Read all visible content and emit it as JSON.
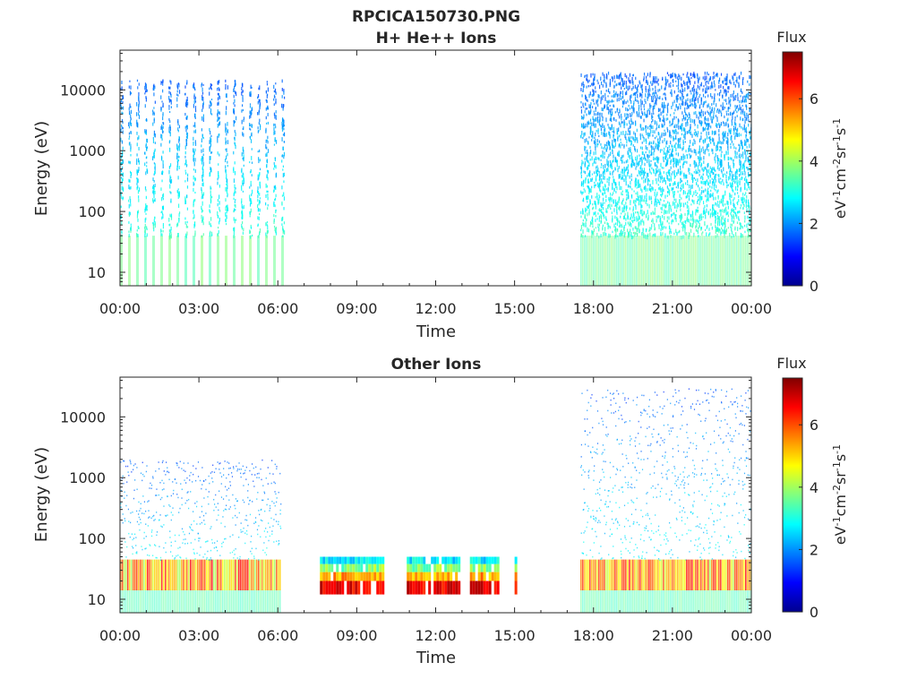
{
  "figure": {
    "title_line1": "RPCICA150730.PNG"
  },
  "chart_data": [
    {
      "type": "heatmap",
      "title": "H+ He++ Ions",
      "xlabel": "Time",
      "ylabel": "Energy (eV)",
      "yscale": "log",
      "ylim": [
        6,
        45000
      ],
      "xlim": [
        "00:00",
        "24:00"
      ],
      "x_tick_labels": [
        "00:00",
        "03:00",
        "06:00",
        "09:00",
        "12:00",
        "15:00",
        "18:00",
        "21:00",
        "00:00"
      ],
      "y_tick_values": [
        10,
        100,
        1000,
        10000
      ],
      "y_tick_labels": [
        "10",
        "100",
        "1000",
        "10000"
      ],
      "colorbar": {
        "title": "Flux",
        "label": "eV-1cm-2sr-1s-1",
        "range": [
          0,
          7.5
        ],
        "tick_labels": [
          "0",
          "2",
          "4",
          "6"
        ],
        "tick_values": [
          0,
          2,
          4,
          6
        ],
        "colormap": "jet"
      },
      "data_intervals": [
        {
          "start_hour": 0.0,
          "end_hour": 6.2,
          "energy_range_ev": [
            6,
            15000
          ],
          "pattern": "striped bursts",
          "dominant_flux": "2-3 at high energy, 3-4 at low energy"
        },
        {
          "start_hour": 17.5,
          "end_hour": 24.0,
          "energy_range_ev": [
            6,
            20000
          ],
          "pattern": "continuous",
          "dominant_flux": "1.5-2.5 at high energy, 3-4 at low energy"
        }
      ]
    },
    {
      "type": "heatmap",
      "title": "Other Ions",
      "xlabel": "Time",
      "ylabel": "Energy (eV)",
      "yscale": "log",
      "ylim": [
        6,
        45000
      ],
      "xlim": [
        "00:00",
        "24:00"
      ],
      "x_tick_labels": [
        "00:00",
        "03:00",
        "06:00",
        "09:00",
        "12:00",
        "15:00",
        "18:00",
        "21:00",
        "00:00"
      ],
      "y_tick_values": [
        10,
        100,
        1000,
        10000
      ],
      "y_tick_labels": [
        "10",
        "100",
        "1000",
        "10000"
      ],
      "colorbar": {
        "title": "Flux",
        "label": "eV-1cm-2sr-1s-1",
        "range": [
          0,
          7.5
        ],
        "tick_labels": [
          "0",
          "2",
          "4",
          "6"
        ],
        "tick_values": [
          0,
          2,
          4,
          6
        ],
        "colormap": "jet"
      },
      "data_intervals": [
        {
          "start_hour": 0.0,
          "end_hour": 6.1,
          "energy_range_ev": [
            6,
            2000
          ],
          "pattern": "sparse with band at 12-40 eV",
          "dominant_flux": "4-6 in band"
        },
        {
          "start_hour": 7.6,
          "end_hour": 10.0,
          "energy_range_ev": [
            12,
            50
          ],
          "pattern": "block",
          "dominant_flux": "6-7"
        },
        {
          "start_hour": 10.9,
          "end_hour": 12.9,
          "energy_range_ev": [
            12,
            50
          ],
          "pattern": "block",
          "dominant_flux": "5.5-6.5"
        },
        {
          "start_hour": 13.3,
          "end_hour": 14.4,
          "energy_range_ev": [
            12,
            50
          ],
          "pattern": "block",
          "dominant_flux": "5-6"
        },
        {
          "start_hour": 15.0,
          "end_hour": 15.1,
          "energy_range_ev": [
            12,
            50
          ],
          "pattern": "narrow block",
          "dominant_flux": "5"
        },
        {
          "start_hour": 17.5,
          "end_hour": 24.0,
          "energy_range_ev": [
            6,
            30000
          ],
          "pattern": "continuous with band at 12-45 eV",
          "dominant_flux": "4-6 in band"
        }
      ]
    }
  ]
}
